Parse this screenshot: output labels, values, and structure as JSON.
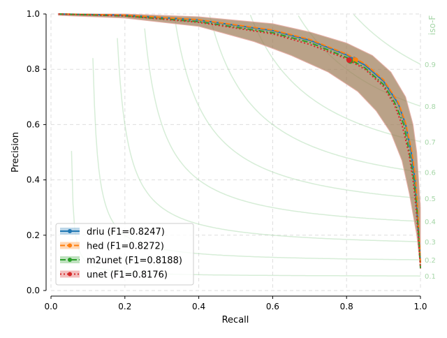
{
  "chart_data": {
    "type": "line",
    "xlabel": "Recall",
    "ylabel": "Precision",
    "xlim": [
      0,
      1
    ],
    "ylim": [
      0,
      1
    ],
    "xticks": [
      "0.0",
      "0.2",
      "0.4",
      "0.6",
      "0.8",
      "1.0"
    ],
    "yticks": [
      "0.0",
      "0.2",
      "0.4",
      "0.6",
      "0.8",
      "1.0"
    ],
    "grid": true,
    "legend_position": "lower-left",
    "iso_f": {
      "label": "iso-F",
      "values": [
        0.1,
        0.2,
        0.3,
        0.4,
        0.5,
        0.6,
        0.7,
        0.8,
        0.9
      ],
      "color": "#a5d6a7"
    },
    "band": {
      "color": "#9c7a56",
      "upper": [
        [
          0.02,
          1.0
        ],
        [
          0.2,
          1.0
        ],
        [
          0.4,
          0.99
        ],
        [
          0.6,
          0.965
        ],
        [
          0.7,
          0.935
        ],
        [
          0.8,
          0.895
        ],
        [
          0.87,
          0.85
        ],
        [
          0.92,
          0.79
        ],
        [
          0.96,
          0.7
        ],
        [
          0.98,
          0.6
        ],
        [
          0.99,
          0.5
        ],
        [
          1.0,
          0.3
        ]
      ],
      "lower": [
        [
          0.02,
          0.995
        ],
        [
          0.2,
          0.985
        ],
        [
          0.4,
          0.955
        ],
        [
          0.55,
          0.9
        ],
        [
          0.65,
          0.85
        ],
        [
          0.75,
          0.79
        ],
        [
          0.83,
          0.72
        ],
        [
          0.88,
          0.65
        ],
        [
          0.92,
          0.57
        ],
        [
          0.95,
          0.47
        ],
        [
          0.97,
          0.35
        ],
        [
          0.99,
          0.2
        ],
        [
          1.0,
          0.08
        ]
      ]
    },
    "series": [
      {
        "name": "driu (F1=0.8247)",
        "color": "#1f77b4",
        "dash": "",
        "marker": [
          0.82,
          0.835
        ],
        "points": [
          [
            0.02,
            1.0
          ],
          [
            0.2,
            0.996
          ],
          [
            0.4,
            0.978
          ],
          [
            0.6,
            0.94
          ],
          [
            0.7,
            0.905
          ],
          [
            0.8,
            0.852
          ],
          [
            0.85,
            0.815
          ],
          [
            0.9,
            0.757
          ],
          [
            0.94,
            0.675
          ],
          [
            0.96,
            0.6
          ],
          [
            0.975,
            0.5
          ],
          [
            0.985,
            0.4
          ],
          [
            0.99,
            0.3
          ],
          [
            0.995,
            0.2
          ],
          [
            1.0,
            0.1
          ]
        ]
      },
      {
        "name": "hed (F1=0.8272)",
        "color": "#ff7f0e",
        "dash": "7,3",
        "marker": [
          0.824,
          0.833
        ],
        "points": [
          [
            0.02,
            1.0
          ],
          [
            0.2,
            0.996
          ],
          [
            0.4,
            0.979
          ],
          [
            0.6,
            0.942
          ],
          [
            0.7,
            0.908
          ],
          [
            0.8,
            0.855
          ],
          [
            0.85,
            0.82
          ],
          [
            0.9,
            0.762
          ],
          [
            0.94,
            0.68
          ],
          [
            0.96,
            0.605
          ],
          [
            0.977,
            0.5
          ],
          [
            0.987,
            0.4
          ],
          [
            0.992,
            0.3
          ],
          [
            0.996,
            0.2
          ],
          [
            1.0,
            0.1
          ]
        ]
      },
      {
        "name": "m2unet (F1=0.8188)",
        "color": "#2ca02c",
        "dash": "8,3,2,3",
        "marker": [
          0.81,
          0.83
        ],
        "points": [
          [
            0.02,
            1.0
          ],
          [
            0.2,
            0.993
          ],
          [
            0.4,
            0.972
          ],
          [
            0.6,
            0.932
          ],
          [
            0.7,
            0.897
          ],
          [
            0.8,
            0.843
          ],
          [
            0.85,
            0.805
          ],
          [
            0.9,
            0.745
          ],
          [
            0.93,
            0.68
          ],
          [
            0.955,
            0.6
          ],
          [
            0.97,
            0.5
          ],
          [
            0.982,
            0.4
          ],
          [
            0.99,
            0.3
          ],
          [
            0.995,
            0.2
          ],
          [
            1.0,
            0.08
          ]
        ]
      },
      {
        "name": "unet (F1=0.8176)",
        "color": "#d62728",
        "dash": "2,3",
        "marker": [
          0.807,
          0.833
        ],
        "points": [
          [
            0.02,
            1.0
          ],
          [
            0.2,
            0.993
          ],
          [
            0.4,
            0.97
          ],
          [
            0.6,
            0.928
          ],
          [
            0.7,
            0.89
          ],
          [
            0.8,
            0.838
          ],
          [
            0.85,
            0.8
          ],
          [
            0.9,
            0.738
          ],
          [
            0.93,
            0.67
          ],
          [
            0.95,
            0.6
          ],
          [
            0.968,
            0.5
          ],
          [
            0.98,
            0.4
          ],
          [
            0.988,
            0.3
          ],
          [
            0.994,
            0.2
          ],
          [
            1.0,
            0.08
          ]
        ]
      }
    ]
  }
}
